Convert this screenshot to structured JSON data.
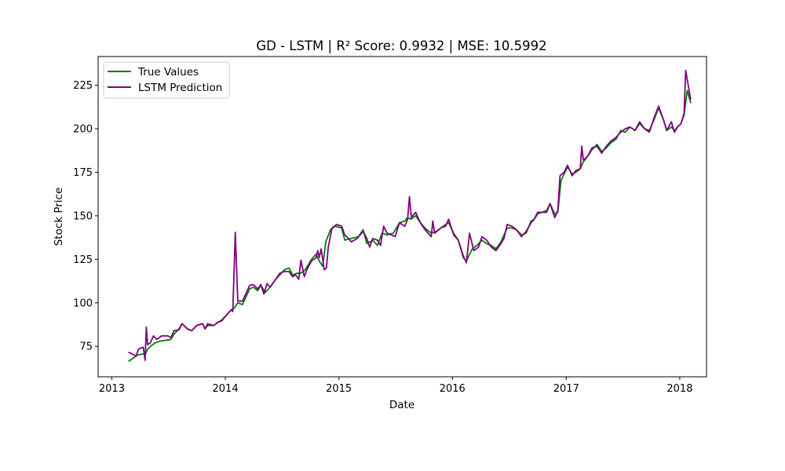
{
  "chart_data": {
    "type": "line",
    "title": "GD - LSTM | R² Score: 0.9932 | MSE: 10.5992",
    "xlabel": "Date",
    "ylabel": "Stock Price",
    "x_axis": {
      "kind": "date",
      "range": [
        "2012-11-18",
        "2018-03-28"
      ],
      "ticks": [
        {
          "date": "2013-01-01",
          "label": "2013"
        },
        {
          "date": "2014-01-01",
          "label": "2014"
        },
        {
          "date": "2015-01-01",
          "label": "2015"
        },
        {
          "date": "2016-01-01",
          "label": "2016"
        },
        {
          "date": "2017-01-01",
          "label": "2017"
        },
        {
          "date": "2018-01-01",
          "label": "2018"
        }
      ]
    },
    "y_axis": {
      "range": [
        57.5,
        241.5
      ],
      "ticks": [
        75,
        100,
        125,
        150,
        175,
        200,
        225
      ]
    },
    "grid": false,
    "legend_position": "top-left",
    "series": [
      {
        "name": "True Values",
        "color": "#008000",
        "points": [
          [
            "2013-02-25",
            66.5
          ],
          [
            "2013-03-25",
            70
          ],
          [
            "2013-04-20",
            71
          ],
          [
            "2013-04-25",
            73
          ],
          [
            "2013-05-05",
            75
          ],
          [
            "2013-05-20",
            77
          ],
          [
            "2013-06-05",
            78
          ],
          [
            "2013-06-25",
            78.5
          ],
          [
            "2013-07-10",
            79
          ],
          [
            "2013-07-20",
            82
          ],
          [
            "2013-08-05",
            85
          ],
          [
            "2013-08-15",
            88
          ],
          [
            "2013-09-01",
            85
          ],
          [
            "2013-09-15",
            84
          ],
          [
            "2013-10-01",
            87
          ],
          [
            "2013-10-20",
            88
          ],
          [
            "2013-10-28",
            85
          ],
          [
            "2013-11-05",
            87
          ],
          [
            "2013-11-25",
            87
          ],
          [
            "2013-12-10",
            89
          ],
          [
            "2013-12-20",
            89.5
          ],
          [
            "2014-01-05",
            93
          ],
          [
            "2014-01-20",
            96
          ],
          [
            "2014-01-30",
            97
          ],
          [
            "2014-02-10",
            100
          ],
          [
            "2014-02-25",
            99
          ],
          [
            "2014-03-10",
            104
          ],
          [
            "2014-03-20",
            108
          ],
          [
            "2014-04-01",
            109
          ],
          [
            "2014-04-15",
            107
          ],
          [
            "2014-04-25",
            110
          ],
          [
            "2014-05-10",
            106
          ],
          [
            "2014-05-25",
            109
          ],
          [
            "2014-06-10",
            113
          ],
          [
            "2014-06-25",
            116
          ],
          [
            "2014-07-10",
            119
          ],
          [
            "2014-07-25",
            120
          ],
          [
            "2014-08-05",
            116
          ],
          [
            "2014-08-20",
            117
          ],
          [
            "2014-09-01",
            117
          ],
          [
            "2014-09-15",
            119
          ],
          [
            "2014-10-05",
            125
          ],
          [
            "2014-10-20",
            128
          ],
          [
            "2014-10-30",
            124
          ],
          [
            "2014-11-10",
            121
          ],
          [
            "2014-11-20",
            135
          ],
          [
            "2014-12-05",
            142
          ],
          [
            "2014-12-20",
            144
          ],
          [
            "2015-01-10",
            143
          ],
          [
            "2015-01-20",
            136
          ],
          [
            "2015-02-10",
            137
          ],
          [
            "2015-03-05",
            138
          ],
          [
            "2015-03-20",
            142
          ],
          [
            "2015-04-01",
            134
          ],
          [
            "2015-04-20",
            136
          ],
          [
            "2015-05-05",
            133
          ],
          [
            "2015-05-20",
            140
          ],
          [
            "2015-06-05",
            139
          ],
          [
            "2015-06-25",
            140
          ],
          [
            "2015-07-15",
            146
          ],
          [
            "2015-08-01",
            147
          ],
          [
            "2015-08-10",
            149
          ],
          [
            "2015-08-20",
            148
          ],
          [
            "2015-09-05",
            150
          ],
          [
            "2015-09-20",
            146
          ],
          [
            "2015-10-05",
            143
          ],
          [
            "2015-10-25",
            140
          ],
          [
            "2015-11-10",
            141
          ],
          [
            "2015-11-25",
            143
          ],
          [
            "2015-12-10",
            145
          ],
          [
            "2015-12-20",
            146
          ],
          [
            "2016-01-05",
            140
          ],
          [
            "2016-01-20",
            136
          ],
          [
            "2016-02-05",
            126
          ],
          [
            "2016-02-15",
            124
          ],
          [
            "2016-03-05",
            131
          ],
          [
            "2016-03-20",
            133
          ],
          [
            "2016-04-05",
            136
          ],
          [
            "2016-04-20",
            134
          ],
          [
            "2016-05-05",
            133
          ],
          [
            "2016-05-20",
            131
          ],
          [
            "2016-06-05",
            135
          ],
          [
            "2016-06-25",
            143
          ],
          [
            "2016-07-10",
            143
          ],
          [
            "2016-07-25",
            142
          ],
          [
            "2016-08-10",
            139
          ],
          [
            "2016-08-25",
            140
          ],
          [
            "2016-09-10",
            147
          ],
          [
            "2016-09-20",
            148
          ],
          [
            "2016-10-01",
            151
          ],
          [
            "2016-10-15",
            152
          ],
          [
            "2016-10-30",
            153
          ],
          [
            "2016-11-10",
            157
          ],
          [
            "2016-11-25",
            151
          ],
          [
            "2016-12-05",
            152
          ],
          [
            "2016-12-15",
            170
          ],
          [
            "2016-12-25",
            174
          ],
          [
            "2017-01-05",
            178
          ],
          [
            "2017-01-20",
            174
          ],
          [
            "2017-02-01",
            175
          ],
          [
            "2017-02-15",
            177
          ],
          [
            "2017-02-25",
            181
          ],
          [
            "2017-03-10",
            184
          ],
          [
            "2017-03-25",
            188
          ],
          [
            "2017-04-10",
            191
          ],
          [
            "2017-04-25",
            187
          ],
          [
            "2017-05-10",
            189
          ],
          [
            "2017-05-25",
            192
          ],
          [
            "2017-06-10",
            194
          ],
          [
            "2017-06-25",
            199
          ],
          [
            "2017-07-10",
            198
          ],
          [
            "2017-07-25",
            201
          ],
          [
            "2017-08-10",
            199
          ],
          [
            "2017-08-25",
            203
          ],
          [
            "2017-09-10",
            200
          ],
          [
            "2017-09-25",
            199
          ],
          [
            "2017-10-10",
            205
          ],
          [
            "2017-10-25",
            212
          ],
          [
            "2017-11-10",
            205
          ],
          [
            "2017-11-20",
            199
          ],
          [
            "2017-12-05",
            201
          ],
          [
            "2017-12-15",
            199
          ],
          [
            "2017-12-25",
            201
          ],
          [
            "2018-01-05",
            203
          ],
          [
            "2018-01-15",
            208
          ],
          [
            "2018-01-25",
            222
          ],
          [
            "2018-02-05",
            215
          ]
        ]
      },
      {
        "name": "LSTM Prediction",
        "color": "#800080",
        "points": [
          [
            "2013-02-25",
            71.5
          ],
          [
            "2013-03-20",
            69.5
          ],
          [
            "2013-03-28",
            73.5
          ],
          [
            "2013-04-12",
            74.5
          ],
          [
            "2013-04-18",
            67
          ],
          [
            "2013-04-22",
            86
          ],
          [
            "2013-04-26",
            76
          ],
          [
            "2013-05-05",
            77
          ],
          [
            "2013-05-15",
            81
          ],
          [
            "2013-05-25",
            79
          ],
          [
            "2013-06-10",
            81
          ],
          [
            "2013-06-30",
            81
          ],
          [
            "2013-07-10",
            80
          ],
          [
            "2013-07-20",
            84
          ],
          [
            "2013-08-05",
            84.5
          ],
          [
            "2013-08-15",
            88
          ],
          [
            "2013-09-01",
            85
          ],
          [
            "2013-09-15",
            84
          ],
          [
            "2013-10-01",
            87
          ],
          [
            "2013-10-20",
            88
          ],
          [
            "2013-10-28",
            85
          ],
          [
            "2013-11-05",
            88
          ],
          [
            "2013-11-25",
            87
          ],
          [
            "2013-12-10",
            89
          ],
          [
            "2013-12-20",
            90
          ],
          [
            "2014-01-05",
            93
          ],
          [
            "2014-01-20",
            96
          ],
          [
            "2014-01-25",
            95
          ],
          [
            "2014-02-02",
            140.5
          ],
          [
            "2014-02-10",
            101
          ],
          [
            "2014-02-25",
            101
          ],
          [
            "2014-03-10",
            106
          ],
          [
            "2014-03-20",
            110
          ],
          [
            "2014-04-01",
            110.5
          ],
          [
            "2014-04-15",
            108
          ],
          [
            "2014-04-25",
            110.5
          ],
          [
            "2014-05-05",
            105
          ],
          [
            "2014-05-15",
            111
          ],
          [
            "2014-05-25",
            109
          ],
          [
            "2014-06-10",
            113
          ],
          [
            "2014-06-25",
            117
          ],
          [
            "2014-07-10",
            118
          ],
          [
            "2014-07-25",
            118
          ],
          [
            "2014-08-05",
            115
          ],
          [
            "2014-08-15",
            116
          ],
          [
            "2014-08-25",
            113.5
          ],
          [
            "2014-09-01",
            124.5
          ],
          [
            "2014-09-12",
            115
          ],
          [
            "2014-09-20",
            119
          ],
          [
            "2014-10-05",
            124
          ],
          [
            "2014-10-20",
            126
          ],
          [
            "2014-10-25",
            130
          ],
          [
            "2014-10-30",
            126
          ],
          [
            "2014-11-05",
            131
          ],
          [
            "2014-11-15",
            119
          ],
          [
            "2014-11-22",
            120
          ],
          [
            "2014-11-28",
            132
          ],
          [
            "2014-12-10",
            143
          ],
          [
            "2014-12-25",
            145
          ],
          [
            "2015-01-10",
            144
          ],
          [
            "2015-01-20",
            139
          ],
          [
            "2015-02-01",
            137
          ],
          [
            "2015-02-10",
            135
          ],
          [
            "2015-03-01",
            137
          ],
          [
            "2015-03-20",
            141
          ],
          [
            "2015-04-01",
            137
          ],
          [
            "2015-04-10",
            132
          ],
          [
            "2015-04-20",
            137
          ],
          [
            "2015-05-05",
            136
          ],
          [
            "2015-05-15",
            133
          ],
          [
            "2015-05-25",
            144
          ],
          [
            "2015-06-05",
            140
          ],
          [
            "2015-06-20",
            139
          ],
          [
            "2015-07-01",
            138
          ],
          [
            "2015-07-15",
            146
          ],
          [
            "2015-08-01",
            144
          ],
          [
            "2015-08-10",
            148
          ],
          [
            "2015-08-16",
            161
          ],
          [
            "2015-08-22",
            149
          ],
          [
            "2015-09-05",
            152
          ],
          [
            "2015-09-20",
            146
          ],
          [
            "2015-10-05",
            142
          ],
          [
            "2015-10-25",
            138
          ],
          [
            "2015-10-30",
            147
          ],
          [
            "2015-11-05",
            140
          ],
          [
            "2015-11-25",
            143
          ],
          [
            "2015-12-10",
            144
          ],
          [
            "2015-12-20",
            148
          ],
          [
            "2016-01-05",
            139
          ],
          [
            "2016-01-20",
            136
          ],
          [
            "2016-02-05",
            127
          ],
          [
            "2016-02-15",
            123
          ],
          [
            "2016-02-25",
            140
          ],
          [
            "2016-03-10",
            130
          ],
          [
            "2016-03-25",
            132
          ],
          [
            "2016-04-05",
            138
          ],
          [
            "2016-04-20",
            136
          ],
          [
            "2016-05-05",
            132
          ],
          [
            "2016-05-20",
            130
          ],
          [
            "2016-06-05",
            134
          ],
          [
            "2016-06-15",
            137
          ],
          [
            "2016-06-25",
            145
          ],
          [
            "2016-07-10",
            144
          ],
          [
            "2016-07-25",
            142
          ],
          [
            "2016-08-10",
            138
          ],
          [
            "2016-08-25",
            141
          ],
          [
            "2016-09-10",
            146
          ],
          [
            "2016-09-20",
            148
          ],
          [
            "2016-10-01",
            152
          ],
          [
            "2016-10-15",
            152
          ],
          [
            "2016-10-30",
            152
          ],
          [
            "2016-11-10",
            157
          ],
          [
            "2016-11-25",
            149
          ],
          [
            "2016-12-05",
            153
          ],
          [
            "2016-12-12",
            173
          ],
          [
            "2016-12-25",
            175
          ],
          [
            "2017-01-05",
            179
          ],
          [
            "2017-01-20",
            173
          ],
          [
            "2017-02-01",
            176
          ],
          [
            "2017-02-15",
            177
          ],
          [
            "2017-02-20",
            190
          ],
          [
            "2017-02-25",
            182
          ],
          [
            "2017-03-10",
            184
          ],
          [
            "2017-03-25",
            189
          ],
          [
            "2017-04-10",
            190
          ],
          [
            "2017-04-25",
            186
          ],
          [
            "2017-05-10",
            190
          ],
          [
            "2017-05-25",
            193
          ],
          [
            "2017-06-10",
            195
          ],
          [
            "2017-06-25",
            198
          ],
          [
            "2017-07-10",
            200
          ],
          [
            "2017-07-25",
            201
          ],
          [
            "2017-08-10",
            199
          ],
          [
            "2017-08-25",
            204
          ],
          [
            "2017-09-10",
            200
          ],
          [
            "2017-09-25",
            198
          ],
          [
            "2017-10-10",
            206
          ],
          [
            "2017-10-25",
            213
          ],
          [
            "2017-11-10",
            205
          ],
          [
            "2017-11-20",
            199
          ],
          [
            "2017-12-05",
            204
          ],
          [
            "2017-12-15",
            198
          ],
          [
            "2017-12-25",
            201
          ],
          [
            "2018-01-05",
            203
          ],
          [
            "2018-01-15",
            209
          ],
          [
            "2018-01-20",
            233.5
          ],
          [
            "2018-02-05",
            217
          ]
        ]
      }
    ]
  }
}
